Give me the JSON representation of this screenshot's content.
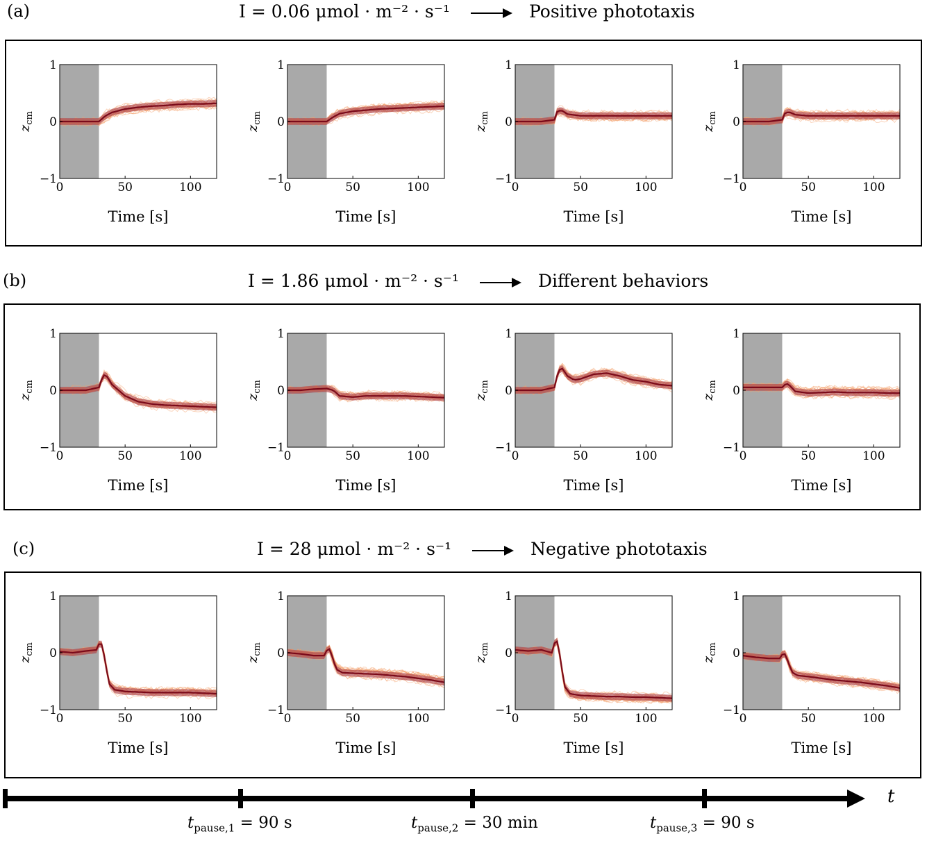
{
  "rows": [
    {
      "tag": "(a)",
      "intensity_label": "I = 0.06 μmol · m⁻² · s⁻¹",
      "outcome": "Positive phototaxis"
    },
    {
      "tag": "(b)",
      "intensity_label": "I = 1.86 μmol · m⁻² · s⁻¹",
      "outcome": "Different behaviors"
    },
    {
      "tag": "(c)",
      "intensity_label": "I = 28 μmol · m⁻² · s⁻¹",
      "outcome": "Negative phototaxis"
    }
  ],
  "timeline": {
    "axis_label": "t",
    "pauses": [
      "t_pause,1 = 90 s",
      "t_pause,2 = 30 min",
      "t_pause,3 = 90 s"
    ]
  },
  "colors": {
    "shade": "#a9a9a9",
    "mean": "#7a0a1a",
    "band": "#a83a45",
    "trials": "#f5a06a"
  },
  "chart_data": [
    {
      "type": "line",
      "row": "(a)",
      "panel": 1,
      "xlabel": "Time [s]",
      "ylabel": "z_cm",
      "xlim": [
        0,
        120
      ],
      "ylim": [
        -1,
        1
      ],
      "xticks": [
        0,
        50,
        100
      ],
      "yticks": [
        -1,
        0,
        1
      ],
      "shaded_x": [
        0,
        30
      ],
      "series": [
        {
          "x": [
            0,
            10,
            20,
            30,
            35,
            40,
            50,
            60,
            70,
            80,
            90,
            100,
            110,
            120
          ],
          "values": [
            0.0,
            0.0,
            0.0,
            0.0,
            0.1,
            0.16,
            0.22,
            0.25,
            0.27,
            0.28,
            0.3,
            0.31,
            0.31,
            0.32
          ]
        }
      ]
    },
    {
      "type": "line",
      "row": "(a)",
      "panel": 2,
      "xlabel": "Time [s]",
      "ylabel": "z_cm",
      "xlim": [
        0,
        120
      ],
      "ylim": [
        -1,
        1
      ],
      "xticks": [
        0,
        50,
        100
      ],
      "yticks": [
        -1,
        0,
        1
      ],
      "shaded_x": [
        0,
        30
      ],
      "series": [
        {
          "x": [
            0,
            10,
            20,
            30,
            35,
            40,
            50,
            60,
            70,
            80,
            90,
            100,
            110,
            120
          ],
          "values": [
            0.0,
            0.0,
            0.0,
            0.0,
            0.08,
            0.14,
            0.18,
            0.2,
            0.22,
            0.23,
            0.24,
            0.25,
            0.26,
            0.27
          ]
        }
      ]
    },
    {
      "type": "line",
      "row": "(a)",
      "panel": 3,
      "xlabel": "Time [s]",
      "ylabel": "z_cm",
      "xlim": [
        0,
        120
      ],
      "ylim": [
        -1,
        1
      ],
      "xticks": [
        0,
        50,
        100
      ],
      "yticks": [
        -1,
        0,
        1
      ],
      "shaded_x": [
        0,
        30
      ],
      "series": [
        {
          "x": [
            0,
            10,
            20,
            30,
            32,
            35,
            40,
            50,
            60,
            70,
            80,
            90,
            100,
            110,
            120
          ],
          "values": [
            0.0,
            0.0,
            0.0,
            0.03,
            0.17,
            0.2,
            0.13,
            0.1,
            0.1,
            0.1,
            0.1,
            0.1,
            0.1,
            0.1,
            0.1
          ]
        }
      ]
    },
    {
      "type": "line",
      "row": "(a)",
      "panel": 4,
      "xlabel": "Time [s]",
      "ylabel": "z_cm",
      "xlim": [
        0,
        120
      ],
      "ylim": [
        -1,
        1
      ],
      "xticks": [
        0,
        50,
        100
      ],
      "yticks": [
        -1,
        0,
        1
      ],
      "shaded_x": [
        0,
        30
      ],
      "series": [
        {
          "x": [
            0,
            10,
            20,
            30,
            32,
            35,
            40,
            50,
            60,
            70,
            80,
            90,
            100,
            110,
            120
          ],
          "values": [
            0.0,
            0.0,
            0.0,
            0.03,
            0.14,
            0.17,
            0.12,
            0.1,
            0.1,
            0.1,
            0.1,
            0.1,
            0.1,
            0.1,
            0.1
          ]
        }
      ]
    },
    {
      "type": "line",
      "row": "(b)",
      "panel": 1,
      "xlabel": "Time [s]",
      "ylabel": "z_cm",
      "xlim": [
        0,
        120
      ],
      "ylim": [
        -1,
        1
      ],
      "xticks": [
        0,
        50,
        100
      ],
      "yticks": [
        -1,
        0,
        1
      ],
      "shaded_x": [
        0,
        30
      ],
      "series": [
        {
          "x": [
            0,
            10,
            20,
            30,
            33,
            35,
            40,
            50,
            60,
            70,
            80,
            90,
            100,
            110,
            120
          ],
          "values": [
            0.0,
            0.0,
            0.0,
            0.05,
            0.25,
            0.28,
            0.1,
            -0.1,
            -0.2,
            -0.24,
            -0.26,
            -0.27,
            -0.28,
            -0.29,
            -0.3
          ]
        }
      ]
    },
    {
      "type": "line",
      "row": "(b)",
      "panel": 2,
      "xlabel": "Time [s]",
      "ylabel": "z_cm",
      "xlim": [
        0,
        120
      ],
      "ylim": [
        -1,
        1
      ],
      "xticks": [
        0,
        50,
        100
      ],
      "yticks": [
        -1,
        0,
        1
      ],
      "shaded_x": [
        0,
        30
      ],
      "series": [
        {
          "x": [
            0,
            10,
            20,
            30,
            35,
            40,
            50,
            60,
            70,
            80,
            90,
            100,
            110,
            120
          ],
          "values": [
            0.0,
            0.0,
            0.02,
            0.03,
            0.0,
            -0.1,
            -0.12,
            -0.1,
            -0.1,
            -0.1,
            -0.1,
            -0.11,
            -0.12,
            -0.13
          ]
        }
      ]
    },
    {
      "type": "line",
      "row": "(b)",
      "panel": 3,
      "xlabel": "Time [s]",
      "ylabel": "z_cm",
      "xlim": [
        0,
        120
      ],
      "ylim": [
        -1,
        1
      ],
      "xticks": [
        0,
        50,
        100
      ],
      "yticks": [
        -1,
        0,
        1
      ],
      "shaded_x": [
        0,
        30
      ],
      "series": [
        {
          "x": [
            0,
            10,
            20,
            30,
            33,
            36,
            40,
            45,
            50,
            60,
            70,
            80,
            90,
            100,
            110,
            120
          ],
          "values": [
            0.0,
            0.0,
            0.0,
            0.05,
            0.35,
            0.38,
            0.25,
            0.18,
            0.2,
            0.28,
            0.3,
            0.25,
            0.18,
            0.15,
            0.1,
            0.08
          ]
        }
      ]
    },
    {
      "type": "line",
      "row": "(b)",
      "panel": 4,
      "xlabel": "Time [s]",
      "ylabel": "z_cm",
      "xlim": [
        0,
        120
      ],
      "ylim": [
        -1,
        1
      ],
      "xticks": [
        0,
        50,
        100
      ],
      "yticks": [
        -1,
        0,
        1
      ],
      "shaded_x": [
        0,
        30
      ],
      "series": [
        {
          "x": [
            0,
            10,
            20,
            30,
            33,
            35,
            40,
            50,
            60,
            70,
            80,
            90,
            100,
            110,
            120
          ],
          "values": [
            0.05,
            0.05,
            0.05,
            0.05,
            0.12,
            0.1,
            -0.02,
            -0.05,
            -0.04,
            -0.03,
            -0.04,
            -0.04,
            -0.04,
            -0.05,
            -0.05
          ]
        }
      ]
    },
    {
      "type": "line",
      "row": "(c)",
      "panel": 1,
      "xlabel": "Time [s]",
      "ylabel": "z_cm",
      "xlim": [
        0,
        120
      ],
      "ylim": [
        -1,
        1
      ],
      "xticks": [
        0,
        50,
        100
      ],
      "yticks": [
        -1,
        0,
        1
      ],
      "shaded_x": [
        0,
        30
      ],
      "series": [
        {
          "x": [
            0,
            10,
            20,
            28,
            31,
            33,
            35,
            38,
            42,
            50,
            60,
            70,
            80,
            90,
            100,
            110,
            120
          ],
          "values": [
            0.02,
            0.0,
            0.03,
            0.05,
            0.2,
            0.1,
            -0.2,
            -0.55,
            -0.65,
            -0.68,
            -0.69,
            -0.7,
            -0.7,
            -0.7,
            -0.7,
            -0.71,
            -0.72
          ]
        }
      ]
    },
    {
      "type": "line",
      "row": "(c)",
      "panel": 2,
      "xlabel": "Time [s]",
      "ylabel": "z_cm",
      "xlim": [
        0,
        120
      ],
      "ylim": [
        -1,
        1
      ],
      "xticks": [
        0,
        50,
        100
      ],
      "yticks": [
        -1,
        0,
        1
      ],
      "shaded_x": [
        0,
        30
      ],
      "series": [
        {
          "x": [
            0,
            10,
            20,
            28,
            31,
            33,
            35,
            38,
            42,
            50,
            60,
            70,
            80,
            90,
            100,
            110,
            120
          ],
          "values": [
            0.0,
            -0.02,
            -0.05,
            -0.05,
            0.08,
            0.05,
            -0.15,
            -0.3,
            -0.35,
            -0.36,
            -0.37,
            -0.38,
            -0.4,
            -0.42,
            -0.45,
            -0.48,
            -0.52
          ]
        }
      ]
    },
    {
      "type": "line",
      "row": "(c)",
      "panel": 3,
      "xlabel": "Time [s]",
      "ylabel": "z_cm",
      "xlim": [
        0,
        120
      ],
      "ylim": [
        -1,
        1
      ],
      "xticks": [
        0,
        50,
        100
      ],
      "yticks": [
        -1,
        0,
        1
      ],
      "shaded_x": [
        0,
        30
      ],
      "series": [
        {
          "x": [
            0,
            10,
            20,
            28,
            31,
            33,
            35,
            38,
            42,
            50,
            60,
            70,
            80,
            90,
            100,
            110,
            120
          ],
          "values": [
            0.05,
            0.03,
            0.05,
            0.0,
            0.25,
            0.15,
            -0.2,
            -0.6,
            -0.72,
            -0.75,
            -0.76,
            -0.77,
            -0.77,
            -0.78,
            -0.78,
            -0.79,
            -0.8
          ]
        }
      ]
    },
    {
      "type": "line",
      "row": "(c)",
      "panel": 4,
      "xlabel": "Time [s]",
      "ylabel": "z_cm",
      "xlim": [
        0,
        120
      ],
      "ylim": [
        -1,
        1
      ],
      "xticks": [
        0,
        50,
        100
      ],
      "yticks": [
        -1,
        0,
        1
      ],
      "shaded_x": [
        0,
        30
      ],
      "series": [
        {
          "x": [
            0,
            10,
            20,
            28,
            31,
            33,
            35,
            38,
            42,
            50,
            60,
            70,
            80,
            90,
            100,
            110,
            120
          ],
          "values": [
            -0.05,
            -0.08,
            -0.1,
            -0.1,
            0.0,
            -0.05,
            -0.2,
            -0.35,
            -0.4,
            -0.42,
            -0.45,
            -0.48,
            -0.5,
            -0.52,
            -0.55,
            -0.58,
            -0.62
          ]
        }
      ]
    }
  ]
}
